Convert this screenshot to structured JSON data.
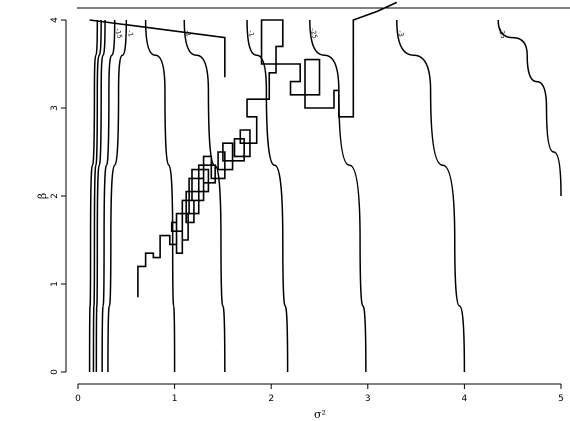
{
  "chart_data": {
    "type": "line",
    "title": "",
    "xlabel": "σ²",
    "ylabel": "β",
    "xlim": [
      -0.1,
      5.1
    ],
    "ylim": [
      -0.05,
      4.15
    ],
    "xticks": [
      "0",
      "1",
      "2",
      "3",
      "4",
      "5"
    ],
    "yticks": [
      "0",
      "1",
      "2",
      "3",
      "4"
    ],
    "grid": false,
    "contours": [
      {
        "label": "",
        "x": [
          0.12,
          0.13,
          0.17,
          0.2
        ],
        "y": [
          0.0,
          1.5,
          3.2,
          4.0
        ]
      },
      {
        "label": "",
        "x": [
          0.16,
          0.17,
          0.2,
          0.24
        ],
        "y": [
          0.0,
          1.5,
          3.2,
          4.0
        ]
      },
      {
        "label": "",
        "x": [
          0.19,
          0.2,
          0.24,
          0.28
        ],
        "y": [
          0.0,
          1.5,
          3.2,
          4.0
        ]
      },
      {
        "label": "-15",
        "x": [
          0.25,
          0.27,
          0.32,
          0.38
        ],
        "y": [
          0.0,
          1.5,
          3.2,
          4.0
        ]
      },
      {
        "label": "-1",
        "x": [
          0.31,
          0.34,
          0.42,
          0.5
        ],
        "y": [
          0.0,
          1.5,
          3.2,
          4.0
        ]
      },
      {
        "label": "",
        "x": [
          1.0,
          0.98,
          0.9,
          0.7
        ],
        "y": [
          0.0,
          1.5,
          3.2,
          4.0
        ]
      },
      {
        "label": "-1",
        "x": [
          1.52,
          1.48,
          1.35,
          1.1
        ],
        "y": [
          0.0,
          1.5,
          3.2,
          4.0
        ]
      },
      {
        "label": "-1",
        "x": [
          2.17,
          2.12,
          1.95,
          1.75
        ],
        "y": [
          0.0,
          1.5,
          3.2,
          4.0
        ]
      },
      {
        "label": "-25",
        "x": [
          2.98,
          2.92,
          2.7,
          2.4
        ],
        "y": [
          0.0,
          1.5,
          3.2,
          4.0
        ]
      },
      {
        "label": "-3",
        "x": [
          4.0,
          3.9,
          3.65,
          3.3
        ],
        "y": [
          0.0,
          1.5,
          3.2,
          4.0
        ]
      },
      {
        "label": "-35",
        "x": [
          5.0,
          4.85,
          4.65,
          4.35
        ],
        "y": [
          2.0,
          3.0,
          3.6,
          4.0
        ]
      }
    ],
    "trace": {
      "x": [
        0.62,
        0.62,
        0.7,
        0.7,
        0.78,
        0.78,
        0.85,
        0.85,
        0.95,
        0.95,
        1.02,
        1.02,
        0.97,
        0.97,
        1.08,
        1.08,
        1.02,
        1.02,
        1.14,
        1.14,
        1.08,
        1.08,
        1.2,
        1.2,
        1.12,
        1.12,
        1.25,
        1.25,
        1.15,
        1.15,
        1.3,
        1.3,
        1.18,
        1.18,
        1.35,
        1.35,
        1.25,
        1.25,
        1.42,
        1.42,
        1.3,
        1.3,
        1.38,
        1.38,
        1.52,
        1.52,
        1.45,
        1.45,
        1.6,
        1.6,
        1.5,
        1.5,
        1.72,
        1.72,
        1.62,
        1.62,
        1.78,
        1.78,
        1.68,
        1.68,
        1.85,
        1.85,
        1.75,
        1.75,
        1.98,
        1.98,
        2.05,
        2.05,
        2.12,
        2.12,
        1.9,
        1.9,
        2.3,
        2.3,
        2.2,
        2.2,
        2.5,
        2.5,
        2.35,
        2.35,
        2.65,
        2.65,
        2.7,
        2.7,
        2.85,
        2.85,
        3.1,
        3.3
      ],
      "y": [
        0.85,
        1.2,
        1.2,
        1.35,
        1.35,
        1.3,
        1.3,
        1.55,
        1.55,
        1.45,
        1.45,
        1.7,
        1.7,
        1.6,
        1.6,
        1.35,
        1.35,
        1.8,
        1.8,
        1.5,
        1.5,
        1.95,
        1.95,
        1.7,
        1.7,
        2.05,
        2.05,
        1.8,
        1.8,
        2.2,
        2.2,
        1.95,
        1.95,
        2.3,
        2.3,
        2.05,
        2.05,
        2.35,
        2.35,
        2.15,
        2.15,
        2.45,
        2.45,
        2.2,
        2.2,
        2.5,
        2.5,
        2.3,
        2.3,
        2.6,
        2.6,
        2.4,
        2.4,
        2.65,
        2.65,
        2.45,
        2.45,
        2.75,
        2.75,
        2.6,
        2.6,
        2.9,
        2.9,
        3.1,
        3.1,
        3.4,
        3.4,
        3.7,
        3.7,
        4.0,
        4.0,
        3.5,
        3.5,
        3.3,
        3.3,
        3.15,
        3.15,
        3.55,
        3.55,
        3.0,
        3.0,
        3.2,
        3.2,
        2.9,
        2.9,
        4.0,
        4.1,
        4.2
      ]
    }
  }
}
